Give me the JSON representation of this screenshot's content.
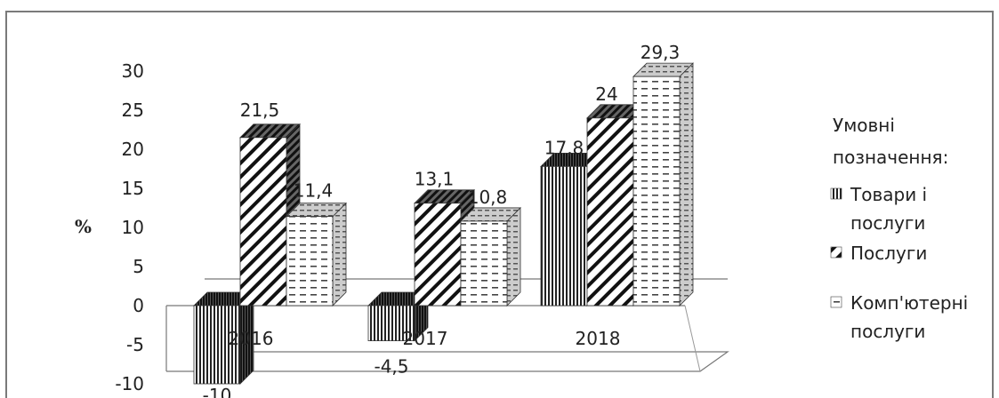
{
  "chart_data": {
    "type": "bar",
    "title": "",
    "xlabel": "",
    "ylabel": "%",
    "ylim": [
      -10,
      30
    ],
    "yticks": [
      "30",
      "25",
      "20",
      "15",
      "10",
      "5",
      "0",
      "-5",
      "-10"
    ],
    "categories": [
      "2016",
      "2017",
      "2018"
    ],
    "series": [
      {
        "values": [
          -10,
          -4.5,
          17.8
        ],
        "labels": [
          "-10",
          "-4,5",
          "17,8"
        ],
        "pattern": "vertical"
      },
      {
        "values": [
          21.5,
          13.1,
          24
        ],
        "labels": [
          "21,5",
          "13,1",
          "24"
        ],
        "pattern": "diagonal"
      },
      {
        "values": [
          11.4,
          10.8,
          29.3
        ],
        "labels": [
          "11,4",
          "10,8",
          "29,3"
        ],
        "pattern": "dashed"
      }
    ],
    "legend": {
      "position": "right",
      "title_lines": [
        "Умовні",
        "позначення:"
      ],
      "entries": [
        {
          "lines": [
            "Товари і",
            "послуги"
          ],
          "pattern": "vertical"
        },
        {
          "lines": [
            "Послуги"
          ],
          "pattern": "diagonal"
        },
        {
          "lines": [
            "Комп'ютерні",
            "послуги"
          ],
          "pattern": "dashed"
        }
      ]
    }
  }
}
